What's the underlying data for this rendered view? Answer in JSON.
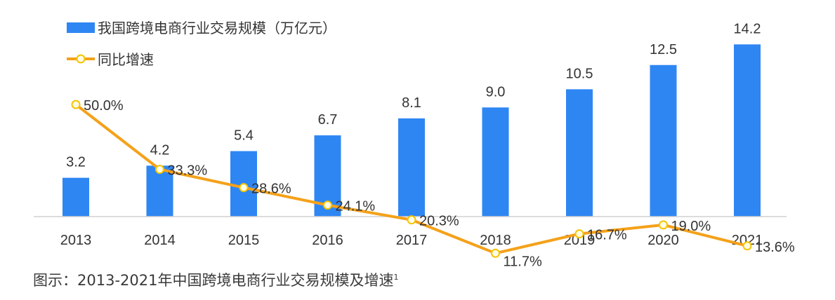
{
  "chart_data": {
    "type": "bar",
    "categories": [
      "2013",
      "2014",
      "2015",
      "2016",
      "2017",
      "2018",
      "2019",
      "2020",
      "2021"
    ],
    "series": [
      {
        "name": "我国跨境电商行业交易规模（万亿元）",
        "type": "bar",
        "color": "#2e86f3",
        "values": [
          3.2,
          4.2,
          5.4,
          6.7,
          8.1,
          9.0,
          10.5,
          12.5,
          14.2
        ],
        "labels": [
          "3.2",
          "4.2",
          "5.4",
          "6.7",
          "8.1",
          "9.0",
          "10.5",
          "12.5",
          "14.2"
        ]
      },
      {
        "name": "同比增速",
        "type": "line",
        "color": "#f4a11a",
        "marker_fill": "#fffbe6",
        "marker_stroke": "#f2c500",
        "values": [
          50.0,
          33.3,
          28.6,
          24.1,
          20.3,
          11.7,
          16.7,
          19.0,
          13.6
        ],
        "labels": [
          "50.0%",
          "33.3%",
          "28.6%",
          "24.1%",
          "20.3%",
          "11.7%",
          "16.7%",
          "19.0%",
          "13.6%"
        ]
      }
    ],
    "ylim_bar": [
      0,
      15
    ],
    "ylim_line": [
      0,
      60
    ],
    "legend_position": "top-left",
    "grid": false
  },
  "caption": {
    "text": "图示：2013-2021年中国跨境电商行业交易规模及增速",
    "footnote": "1"
  }
}
